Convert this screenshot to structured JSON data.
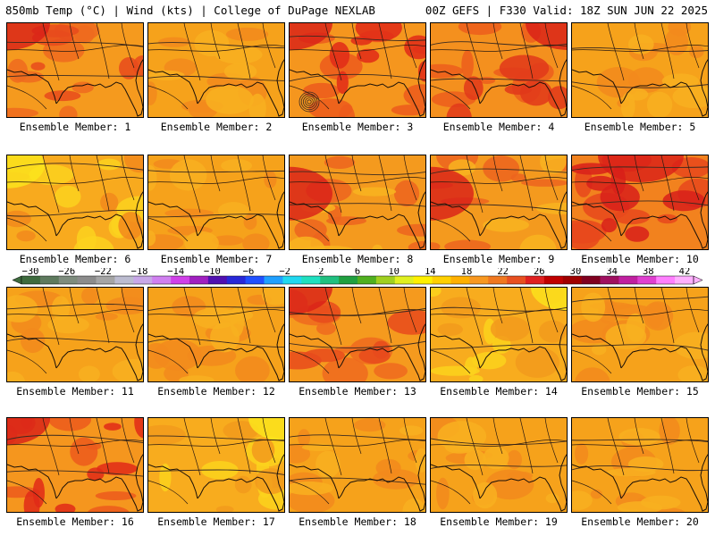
{
  "header": {
    "title_left": "850mb Temp (°C) | Wind (kts) | College of DuPage NEXLAB",
    "title_right": "00Z GEFS | F330 Valid: 18Z SUN JUN 22 2025"
  },
  "members": [
    {
      "label": "Ensemble Member: 1",
      "tone": "warm-nw",
      "hot_corner": "top-left"
    },
    {
      "label": "Ensemble Member: 2",
      "tone": "mid"
    },
    {
      "label": "Ensemble Member: 3",
      "tone": "hot-nw",
      "note": "tropical low over Gulf"
    },
    {
      "label": "Ensemble Member: 4",
      "tone": "hot-ne"
    },
    {
      "label": "Ensemble Member: 5",
      "tone": "mid"
    },
    {
      "label": "Ensemble Member: 6",
      "tone": "cool-nw"
    },
    {
      "label": "Ensemble Member: 7",
      "tone": "mid"
    },
    {
      "label": "Ensemble Member: 8",
      "tone": "warm-w"
    },
    {
      "label": "Ensemble Member: 9",
      "tone": "warm-w"
    },
    {
      "label": "Ensemble Member: 10",
      "tone": "hot-n"
    },
    {
      "label": "Ensemble Member: 11",
      "tone": "mid"
    },
    {
      "label": "Ensemble Member: 12",
      "tone": "mid"
    },
    {
      "label": "Ensemble Member: 13",
      "tone": "warm-nw"
    },
    {
      "label": "Ensemble Member: 14",
      "tone": "cool-ne"
    },
    {
      "label": "Ensemble Member: 15",
      "tone": "mid"
    },
    {
      "label": "Ensemble Member: 16",
      "tone": "hot-nw"
    },
    {
      "label": "Ensemble Member: 17",
      "tone": "cool-ne"
    },
    {
      "label": "Ensemble Member: 18",
      "tone": "mid"
    },
    {
      "label": "Ensemble Member: 19",
      "tone": "mid"
    },
    {
      "label": "Ensemble Member: 20",
      "tone": "mid"
    }
  ],
  "colorbar": {
    "ticks": [
      "−30",
      "−26",
      "−22",
      "−18",
      "−14",
      "−10",
      "−6",
      "−2",
      "2",
      "6",
      "10",
      "14",
      "18",
      "22",
      "26",
      "30",
      "34",
      "38",
      "42"
    ],
    "colors": [
      "#3e6b3e",
      "#5e7a5e",
      "#7e8c7e",
      "#8c8c8c",
      "#a5a5a5",
      "#bcbcd0",
      "#c8a8e8",
      "#d080f0",
      "#d040e8",
      "#a020c0",
      "#5010b0",
      "#2828d8",
      "#2050ff",
      "#20a0ff",
      "#20d8f0",
      "#20e0c0",
      "#20c080",
      "#20a040",
      "#50b020",
      "#a0d020",
      "#e0f020",
      "#fff000",
      "#ffd000",
      "#ffb000",
      "#f89820",
      "#f07820",
      "#e85020",
      "#e02020",
      "#c00000",
      "#a00000",
      "#800020",
      "#a01060",
      "#c020a0",
      "#e040d0",
      "#ff80ff",
      "#ffb0ff"
    ]
  }
}
